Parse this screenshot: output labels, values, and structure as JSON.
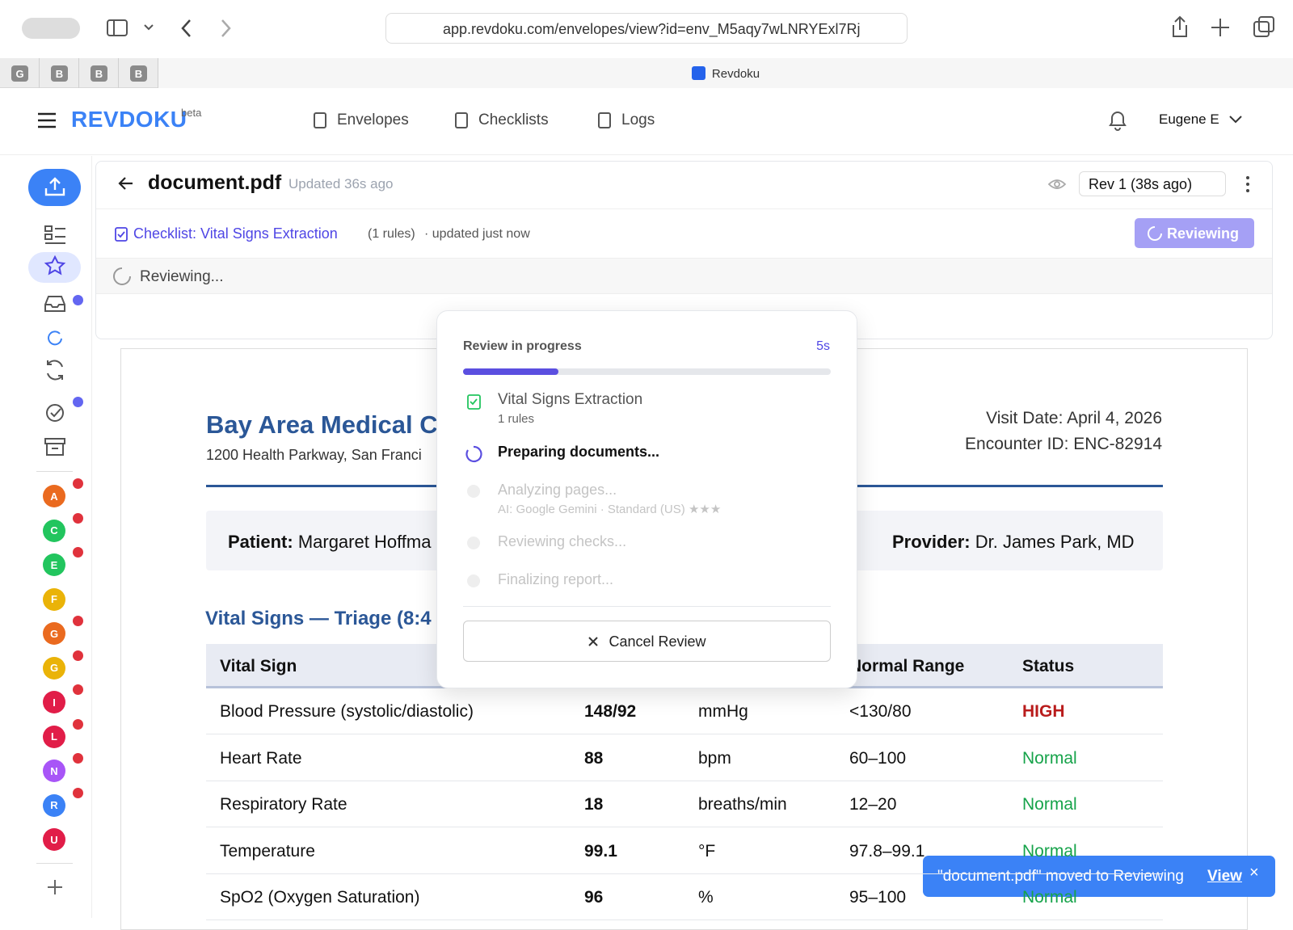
{
  "browser": {
    "url": "app.revdoku.com/envelopes/view?id=env_M5aqy7wLNRYExl7Rj",
    "pinned_tabs": [
      "G",
      "B",
      "B",
      "B"
    ],
    "tab_title": "Revdoku"
  },
  "header": {
    "logo": "REVDOKU",
    "badge": "beta",
    "nav": [
      "Envelopes",
      "Checklists",
      "Logs"
    ],
    "user": "Eugene E"
  },
  "sidebar": {
    "avatars": [
      {
        "letter": "A",
        "color": "#ea6a1f",
        "dot": true
      },
      {
        "letter": "C",
        "color": "#22c55e",
        "dot": true
      },
      {
        "letter": "E",
        "color": "#22c55e",
        "dot": true
      },
      {
        "letter": "F",
        "color": "#eab308",
        "dot": false
      },
      {
        "letter": "G",
        "color": "#ea6a1f",
        "dot": true
      },
      {
        "letter": "G",
        "color": "#eab308",
        "dot": true
      },
      {
        "letter": "I",
        "color": "#e11d48",
        "dot": true
      },
      {
        "letter": "L",
        "color": "#e11d48",
        "dot": true
      },
      {
        "letter": "N",
        "color": "#a855f7",
        "dot": true
      },
      {
        "letter": "R",
        "color": "#3b82f6",
        "dot": true
      },
      {
        "letter": "U",
        "color": "#e11d48",
        "dot": false
      }
    ]
  },
  "document_header": {
    "filename": "document.pdf",
    "updated": "Updated 36s ago",
    "revision": "Rev 1 (38s ago)",
    "checklist_label": "Checklist:",
    "checklist_name": "Vital Signs Extraction",
    "rule_count": "(1 rules)",
    "checklist_updated": "· updated just now",
    "action_button": "Reviewing",
    "status": "Reviewing..."
  },
  "document": {
    "org": "Bay Area Medical C",
    "address": "1200 Health Parkway, San Franci",
    "visit_date": "Visit Date: April 4, 2026",
    "encounter": "Encounter ID: ENC-82914",
    "patient_label": "Patient:",
    "patient": "Margaret Hoffma",
    "provider_label": "Provider:",
    "provider": "Dr. James Park, MD",
    "section": "Vital Signs — Triage (8:4",
    "table": {
      "headers": [
        "Vital Sign",
        "Normal Range",
        "Status"
      ],
      "rows": [
        [
          "Blood Pressure (systolic/diastolic)",
          "148/92",
          "mmHg",
          "<130/80",
          "HIGH"
        ],
        [
          "Heart Rate",
          "88",
          "bpm",
          "60–100",
          "Normal"
        ],
        [
          "Respiratory Rate",
          "18",
          "breaths/min",
          "12–20",
          "Normal"
        ],
        [
          "Temperature",
          "99.1",
          "°F",
          "97.8–99.1",
          "Normal"
        ],
        [
          "SpO2 (Oxygen Saturation)",
          "96",
          "%",
          "95–100",
          "Normal"
        ]
      ]
    }
  },
  "modal": {
    "title": "Review in progress",
    "elapsed": "5s",
    "progress": 26,
    "checklist": "Vital Signs Extraction",
    "checklist_rules": "1 rules",
    "steps": [
      "Preparing documents...",
      "Analyzing pages...",
      "Reviewing checks...",
      "Finalizing report..."
    ],
    "model": "AI: Google Gemini · Standard (US)",
    "stars": "★★★",
    "cancel": "Cancel Review"
  },
  "toast": {
    "message": "\"document.pdf\" moved to Reviewing",
    "link": "View",
    "close": "×"
  }
}
